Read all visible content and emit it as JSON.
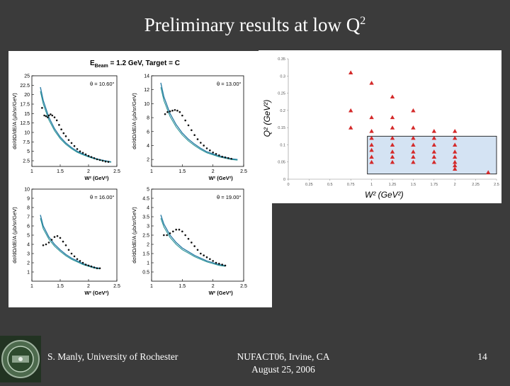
{
  "title": {
    "main": "Preliminary results at low Q",
    "sup": "2"
  },
  "footer": {
    "author": "S. Manly, University of Rochester",
    "conference": "NUFACT06, Irvine, CA",
    "date": "August 25, 2006",
    "page": "14"
  },
  "colors": {
    "background": "#3b3b3b",
    "marker_red": "#d42a2a",
    "fit_blue": "#2f7fa8",
    "fit_teal": "#1f8f8f",
    "data_black": "#111111"
  },
  "chart_data": [
    {
      "type": "line",
      "title": "E_Beam = 1.2 GeV, Target = C",
      "title_parts": {
        "e": "E",
        "sub": "Beam",
        "rest": " = 1.2 GeV, Target = C"
      },
      "ylabel": "dσ/dΩ/dE/A (μb/sr/GeV)",
      "xlabel": "W² (GeV²)",
      "panels": [
        {
          "label": "θ = 10.60°",
          "ylim": [
            1,
            25
          ],
          "yticks": [
            2.5,
            5,
            7.5,
            10,
            12.5,
            15,
            17.5,
            20,
            22.5,
            25
          ],
          "xlim": [
            1,
            2.5
          ],
          "xticks": [
            "1",
            "1.5",
            "2",
            "2.5"
          ],
          "data_x": [
            1.18,
            1.22,
            1.25,
            1.28,
            1.3,
            1.33,
            1.36,
            1.4,
            1.44,
            1.48,
            1.52,
            1.56,
            1.6,
            1.65,
            1.7,
            1.75,
            1.8,
            1.85,
            1.9,
            1.95,
            2.0,
            2.05,
            2.1,
            2.15,
            2.2,
            2.25,
            2.3,
            2.35
          ],
          "data_y": [
            16.5,
            14.5,
            14.3,
            14.0,
            14.5,
            14.8,
            14.5,
            14.0,
            13.2,
            12.0,
            10.8,
            9.8,
            9.0,
            8.0,
            7.2,
            6.4,
            5.6,
            5.0,
            4.6,
            4.2,
            3.8,
            3.5,
            3.2,
            2.9,
            2.7,
            2.5,
            2.3,
            2.2
          ],
          "fit_x": [
            1.15,
            1.2,
            1.3,
            1.4,
            1.5,
            1.6,
            1.7,
            1.8,
            1.9,
            2.0,
            2.1,
            2.2,
            2.3,
            2.4
          ],
          "fit_y": [
            22.0,
            18.5,
            14.0,
            11.0,
            8.8,
            7.2,
            6.0,
            5.0,
            4.3,
            3.7,
            3.2,
            2.8,
            2.5,
            2.2
          ]
        },
        {
          "label": "θ = 13.00°",
          "ylim": [
            1,
            14
          ],
          "yticks": [
            2,
            4,
            6,
            8,
            10,
            12,
            14
          ],
          "xlim": [
            1,
            2.5
          ],
          "xticks": [
            "1",
            "1.5",
            "2",
            "2.5"
          ],
          "data_x": [
            1.22,
            1.26,
            1.3,
            1.34,
            1.38,
            1.42,
            1.46,
            1.5,
            1.55,
            1.6,
            1.65,
            1.7,
            1.75,
            1.8,
            1.85,
            1.9,
            1.95,
            2.0,
            2.05,
            2.1,
            2.15,
            2.2,
            2.25,
            2.3
          ],
          "data_y": [
            8.5,
            8.8,
            8.9,
            9.0,
            9.1,
            9.0,
            8.8,
            8.3,
            7.6,
            6.9,
            6.2,
            5.5,
            4.9,
            4.4,
            4.0,
            3.6,
            3.3,
            3.0,
            2.8,
            2.6,
            2.4,
            2.3,
            2.2,
            2.1
          ],
          "fit_x": [
            1.15,
            1.2,
            1.3,
            1.4,
            1.5,
            1.6,
            1.7,
            1.8,
            1.9,
            2.0,
            2.1,
            2.2,
            2.3,
            2.4
          ],
          "fit_y": [
            13.0,
            11.0,
            8.6,
            7.0,
            5.8,
            4.9,
            4.2,
            3.6,
            3.1,
            2.8,
            2.5,
            2.3,
            2.1,
            2.0
          ]
        },
        {
          "label": "θ = 16.00°",
          "ylim": [
            0,
            10
          ],
          "yticks": [
            1,
            2,
            3,
            4,
            5,
            6,
            7,
            8,
            9,
            10
          ],
          "xlim": [
            1,
            2.5
          ],
          "xticks": [
            "1",
            "1.5",
            "2",
            "2.5"
          ],
          "data_x": [
            1.2,
            1.25,
            1.3,
            1.35,
            1.4,
            1.45,
            1.5,
            1.55,
            1.6,
            1.65,
            1.7,
            1.75,
            1.8,
            1.85,
            1.9,
            1.95,
            2.0,
            2.05,
            2.1,
            2.15,
            2.2
          ],
          "data_y": [
            3.9,
            4.0,
            4.2,
            4.5,
            4.8,
            4.9,
            4.7,
            4.3,
            3.9,
            3.4,
            3.0,
            2.7,
            2.4,
            2.2,
            2.0,
            1.8,
            1.7,
            1.6,
            1.5,
            1.4,
            1.4
          ],
          "fit_x": [
            1.15,
            1.2,
            1.3,
            1.4,
            1.5,
            1.6,
            1.7,
            1.8,
            1.9,
            2.0,
            2.1,
            2.2
          ],
          "fit_y": [
            7.2,
            6.0,
            4.8,
            4.0,
            3.4,
            2.9,
            2.5,
            2.2,
            1.9,
            1.7,
            1.5,
            1.4
          ]
        },
        {
          "label": "θ = 19.00°",
          "ylim": [
            0,
            5
          ],
          "yticks": [
            0.5,
            1,
            1.5,
            2,
            2.5,
            3,
            3.5,
            4,
            4.5,
            5
          ],
          "xlim": [
            1,
            2.5
          ],
          "xticks": [
            "1",
            "1.5",
            "2",
            "2.5"
          ],
          "data_x": [
            1.2,
            1.25,
            1.3,
            1.35,
            1.4,
            1.45,
            1.5,
            1.55,
            1.6,
            1.65,
            1.7,
            1.75,
            1.8,
            1.85,
            1.9,
            1.95,
            2.0,
            2.05,
            2.1,
            2.15,
            2.2
          ],
          "data_y": [
            2.5,
            2.5,
            2.6,
            2.7,
            2.8,
            2.8,
            2.7,
            2.5,
            2.3,
            2.1,
            1.9,
            1.7,
            1.5,
            1.4,
            1.3,
            1.2,
            1.1,
            1.0,
            0.95,
            0.9,
            0.85
          ],
          "fit_x": [
            1.15,
            1.2,
            1.3,
            1.4,
            1.5,
            1.6,
            1.7,
            1.8,
            1.9,
            2.0,
            2.1,
            2.2
          ],
          "fit_y": [
            3.6,
            3.1,
            2.5,
            2.1,
            1.8,
            1.6,
            1.4,
            1.25,
            1.1,
            1.0,
            0.9,
            0.85
          ]
        }
      ]
    },
    {
      "type": "scatter",
      "title": "",
      "xlabel": "W² (GeV²)",
      "ylabel": "Q² (GeV²)",
      "xlim": [
        0,
        2.5
      ],
      "ylim": [
        0,
        0.35
      ],
      "xticks": [
        "0",
        "0.25",
        "0.5",
        "0.75",
        "1",
        "1.25",
        "1.5",
        "1.75",
        "2",
        "2.25",
        "2.5"
      ],
      "yticks": [
        "0",
        "0.05",
        "0.1",
        "0.15",
        "0.2",
        "0.25",
        "0.3",
        "0.35"
      ],
      "x": [
        0.75,
        0.75,
        0.75,
        1,
        1,
        1,
        1,
        1,
        1,
        1,
        1,
        1.25,
        1.25,
        1.25,
        1.25,
        1.25,
        1.25,
        1.25,
        1.25,
        1.5,
        1.5,
        1.5,
        1.5,
        1.5,
        1.5,
        1.5,
        1.75,
        1.75,
        1.75,
        1.75,
        1.75,
        1.75,
        2,
        2,
        2,
        2,
        2,
        2,
        2,
        2,
        2.4
      ],
      "y": [
        0.31,
        0.2,
        0.15,
        0.28,
        0.18,
        0.14,
        0.12,
        0.1,
        0.085,
        0.065,
        0.05,
        0.24,
        0.18,
        0.15,
        0.12,
        0.1,
        0.08,
        0.065,
        0.05,
        0.2,
        0.15,
        0.12,
        0.1,
        0.08,
        0.065,
        0.05,
        0.14,
        0.12,
        0.1,
        0.08,
        0.065,
        0.05,
        0.14,
        0.12,
        0.1,
        0.08,
        0.065,
        0.05,
        0.04,
        0.03,
        0.02
      ],
      "highlight_box": {
        "x": [
          0.95,
          2.5
        ],
        "y": [
          0.015,
          0.125
        ]
      }
    }
  ]
}
